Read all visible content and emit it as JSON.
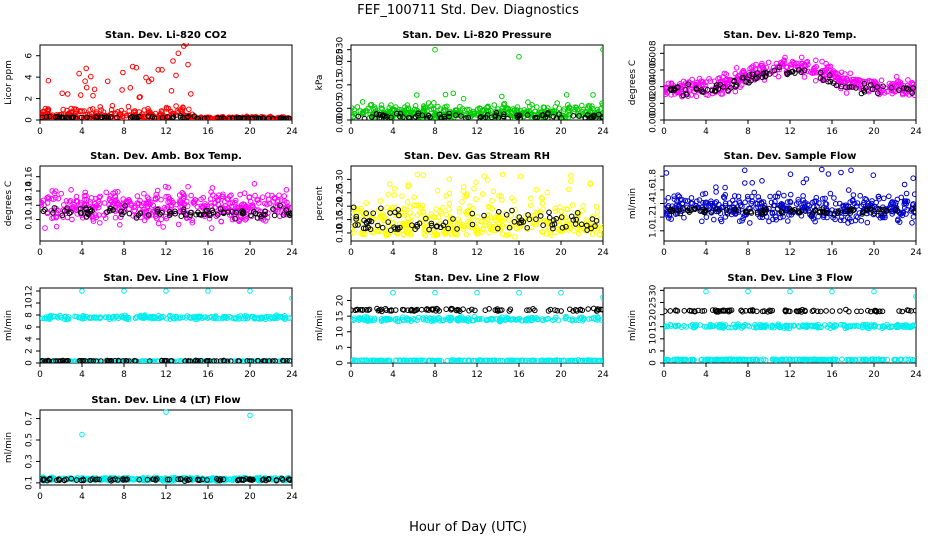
{
  "figure": {
    "title": "FEF_100711  Std. Dev. Diagnostics",
    "xlabel": "Hour of Day (UTC)"
  },
  "chart_data": [
    {
      "type": "scatter",
      "title": "Stan. Dev. Li-820 CO2",
      "ylabel": "Licor ppm",
      "xlim": [
        0,
        24
      ],
      "ylim": [
        0,
        7
      ],
      "xticks": [
        0,
        4,
        8,
        12,
        16,
        20,
        24
      ],
      "yticks": [
        0,
        2,
        4,
        6
      ],
      "ytick_labels": [
        "0",
        "2",
        "4",
        "6"
      ],
      "colors": {
        "main": "#ff0000",
        "second": "#000000"
      },
      "series_profile": {
        "main": "co2",
        "second": "co2k"
      },
      "profile_summary": "Red scatter 0–2 ppm, peaks near 7 ppm around hours 3–14; near zero after hour 15"
    },
    {
      "type": "scatter",
      "title": "Stan. Dev. Li-820 Pressure",
      "ylabel": "kPa",
      "xlim": [
        0,
        24
      ],
      "ylim": [
        0,
        0.032
      ],
      "xticks": [
        0,
        4,
        8,
        12,
        16,
        20,
        24
      ],
      "yticks": [
        0,
        0.005,
        0.015,
        0.025,
        0.03
      ],
      "ytick_labels": [
        "0.000",
        "0.005",
        "0.015",
        "0.025",
        "0.030"
      ],
      "colors": {
        "main": "#00cc00",
        "second": "#000000"
      },
      "series_profile": {
        "main": "press",
        "second": "pressk"
      },
      "profile_summary": "Green band 0–0.008 kPa with outliers near 0.03 at hours 8, 16, 24"
    },
    {
      "type": "scatter",
      "title": "Stan. Dev. Li-820 Temp.",
      "ylabel": "degrees C",
      "xlim": [
        0,
        24
      ],
      "ylim": [
        0,
        0.009
      ],
      "xticks": [
        0,
        4,
        8,
        12,
        16,
        20,
        24
      ],
      "yticks": [
        0,
        0.002,
        0.004,
        0.006,
        0.008
      ],
      "ytick_labels": [
        "0.000",
        "0.002",
        "0.004",
        "0.006",
        "0.008"
      ],
      "colors": {
        "main": "#ff00ff",
        "second": "#000000"
      },
      "series_profile": {
        "main": "temp",
        "second": "tempk"
      },
      "profile_summary": "Magenta 0.002–0.008, highest between hours 8 and 17"
    },
    {
      "type": "scatter",
      "title": "Stan. Dev. Amb. Box Temp.",
      "ylabel": "degrees C",
      "xlim": [
        0,
        24
      ],
      "ylim": [
        0.07,
        0.175
      ],
      "xticks": [
        0,
        4,
        8,
        12,
        16,
        20,
        24
      ],
      "yticks": [
        0.1,
        0.12,
        0.14,
        0.16
      ],
      "ytick_labels": [
        "0.10",
        "0.12",
        "0.14",
        "0.16"
      ],
      "colors": {
        "main": "#ff00ff",
        "second": "#000000"
      },
      "series_profile": {
        "main": "box",
        "second": "boxk"
      },
      "profile_summary": "Magenta 0.09–0.17 scattered across all hours"
    },
    {
      "type": "scatter",
      "title": "Stan. Dev. Gas Stream RH",
      "ylabel": "percent",
      "xlim": [
        0,
        24
      ],
      "ylim": [
        0.07,
        0.35
      ],
      "xticks": [
        0,
        4,
        8,
        12,
        16,
        20,
        24
      ],
      "yticks": [
        0.1,
        0.15,
        0.2,
        0.25,
        0.3
      ],
      "ytick_labels": [
        "0.10",
        "0.15",
        "0.20",
        "0.25",
        "0.30"
      ],
      "colors": {
        "main": "#ffff00",
        "second": "#000000"
      },
      "series_profile": {
        "main": "rh",
        "second": "rhk"
      },
      "profile_summary": "Yellow 0.08–0.34 scattered across all hours"
    },
    {
      "type": "scatter",
      "title": "Stan. Dev. Sample Flow",
      "ylabel": "ml/min",
      "xlim": [
        0,
        24
      ],
      "ylim": [
        0.85,
        1.95
      ],
      "xticks": [
        0,
        4,
        8,
        12,
        16,
        20,
        24
      ],
      "yticks": [
        1.0,
        1.2,
        1.4,
        1.6,
        1.8
      ],
      "ytick_labels": [
        "1.0",
        "1.2",
        "1.4",
        "1.6",
        "1.8"
      ],
      "colors": {
        "main": "#0000cc",
        "second": "#000000"
      },
      "series_profile": {
        "main": "sflow",
        "second": "sflowk"
      },
      "profile_summary": "Blue 1.1–1.9 with black band near 1.3"
    },
    {
      "type": "scatter",
      "title": "Stan. Dev. Line 1 Flow",
      "ylabel": "ml/min",
      "xlim": [
        0,
        24
      ],
      "ylim": [
        0,
        12.5
      ],
      "xticks": [
        0,
        4,
        8,
        12,
        16,
        20,
        24
      ],
      "yticks": [
        0,
        2,
        4,
        6,
        8,
        10,
        12
      ],
      "ytick_labels": [
        "0",
        "2",
        "4",
        "6",
        "8",
        "10",
        "12"
      ],
      "colors": {
        "main": "#00eeee",
        "second": "#000000"
      },
      "series_profile": {
        "main": "l1",
        "second": "l1k"
      },
      "profile_summary": "Cyan bands near 7.5 and 0.3; outliers near 12"
    },
    {
      "type": "scatter",
      "title": "Stan. Dev. Line 2 Flow",
      "ylabel": "ml/min",
      "xlim": [
        0,
        24
      ],
      "ylim": [
        0,
        24
      ],
      "xticks": [
        0,
        4,
        8,
        12,
        16,
        20,
        24
      ],
      "yticks": [
        0,
        5,
        10,
        15,
        20
      ],
      "ytick_labels": [
        "0",
        "5",
        "10",
        "15",
        "20"
      ],
      "colors": {
        "main": "#00eeee",
        "second": "#000000"
      },
      "series_profile": {
        "main": "l2",
        "second": "l2k"
      },
      "profile_summary": "Cyan bands near 14 and 0.8, black near 17; outliers near 22"
    },
    {
      "type": "scatter",
      "title": "Stan. Dev. Line 3 Flow",
      "ylabel": "ml/min",
      "xlim": [
        0,
        24
      ],
      "ylim": [
        0,
        31
      ],
      "xticks": [
        0,
        4,
        8,
        12,
        16,
        20,
        24
      ],
      "yticks": [
        0,
        5,
        10,
        15,
        20,
        25,
        30
      ],
      "ytick_labels": [
        "0",
        "5",
        "10",
        "15",
        "20",
        "25",
        "30"
      ],
      "colors": {
        "main": "#00eeee",
        "second": "#000000"
      },
      "series_profile": {
        "main": "l3",
        "second": "l3k"
      },
      "profile_summary": "Cyan bands near 15 and 1.5, black near 21; outliers near 29"
    },
    {
      "type": "scatter",
      "title": "Stan. Dev. Line 4 (LT) Flow",
      "ylabel": "ml/min",
      "xlim": [
        0,
        24
      ],
      "ylim": [
        0.08,
        0.78
      ],
      "xticks": [
        0,
        4,
        8,
        12,
        16,
        20,
        24
      ],
      "yticks": [
        0.1,
        0.3,
        0.5,
        0.7
      ],
      "ytick_labels": [
        "0.1",
        "0.3",
        "0.5",
        "0.7"
      ],
      "colors": {
        "main": "#00eeee",
        "second": "#000000"
      },
      "series_profile": {
        "main": "l4",
        "second": "l4k"
      },
      "profile_summary": "Band near 0.13; outliers 0.55 at hour 4, 0.75 at 12 and 20"
    }
  ]
}
